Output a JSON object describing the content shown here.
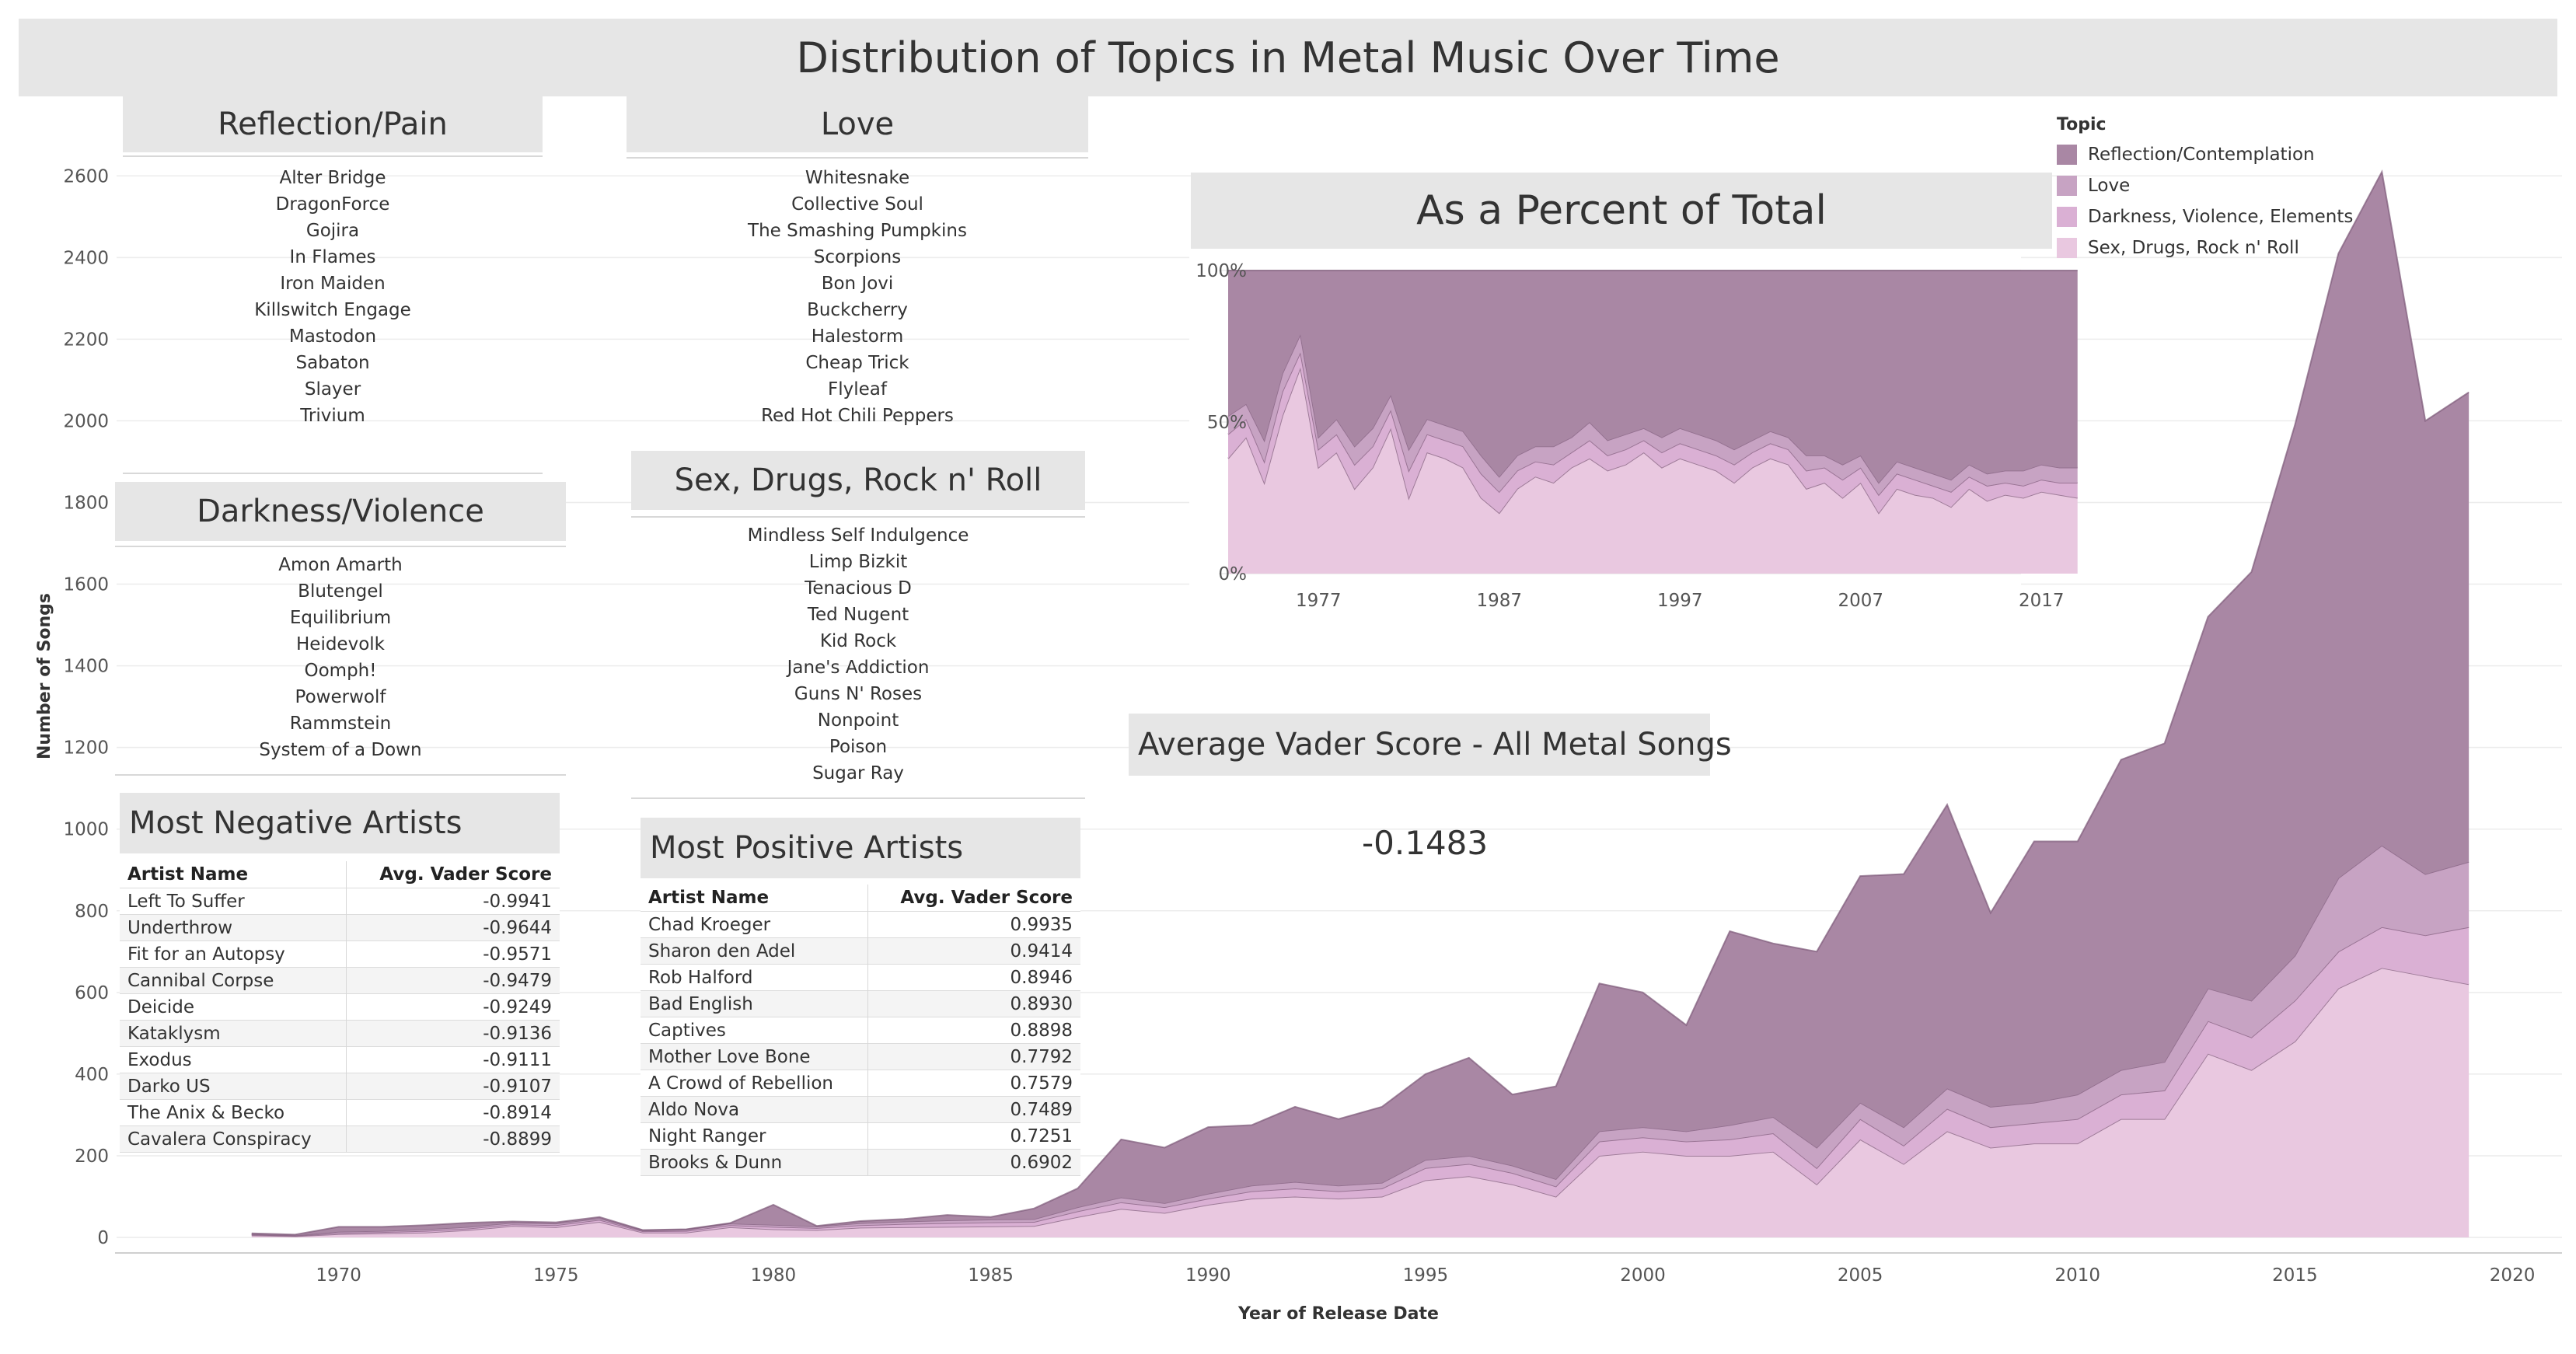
{
  "dashboard": {
    "title": "Distribution of Topics in Metal Music Over Time"
  },
  "colors": {
    "reflection": "#a987a4",
    "love": "#c7a3c3",
    "darkness": "#dab0d4",
    "sex": "#e9c8e0",
    "line": "#7d5a79",
    "header_bg": "#e6e6e6"
  },
  "lists": {
    "reflection_pain": {
      "title": "Reflection/Pain",
      "items": [
        "Alter Bridge",
        "DragonForce",
        "Gojira",
        "In Flames",
        "Iron Maiden",
        "Killswitch Engage",
        "Mastodon",
        "Sabaton",
        "Slayer",
        "Trivium"
      ]
    },
    "love": {
      "title": "Love",
      "items": [
        "Whitesnake",
        "Collective Soul",
        "The Smashing Pumpkins",
        "Scorpions",
        "Bon Jovi",
        "Buckcherry",
        "Halestorm",
        "Cheap Trick",
        "Flyleaf",
        "Red Hot Chili Peppers"
      ]
    },
    "darkness_violence": {
      "title": "Darkness/Violence",
      "items": [
        "Amon Amarth",
        "Blutengel",
        "Equilibrium",
        "Heidevolk",
        "Oomph!",
        "Powerwolf",
        "Rammstein",
        "System of a Down"
      ]
    },
    "sex_drugs": {
      "title": "Sex, Drugs, Rock n' Roll",
      "items": [
        "Mindless Self Indulgence",
        "Limp Bizkit",
        "Tenacious D",
        "Ted Nugent",
        "Kid Rock",
        "Jane's Addiction",
        "Guns N' Roses",
        "Nonpoint",
        "Poison",
        "Sugar Ray"
      ]
    }
  },
  "negative": {
    "title": "Most Negative Artists",
    "col_name": "Artist Name",
    "col_score": "Avg. Vader Score",
    "rows": [
      [
        "Left To Suffer",
        "-0.9941"
      ],
      [
        "Underthrow",
        "-0.9644"
      ],
      [
        "Fit for an Autopsy",
        "-0.9571"
      ],
      [
        "Cannibal Corpse",
        "-0.9479"
      ],
      [
        "Deicide",
        "-0.9249"
      ],
      [
        "Kataklysm",
        "-0.9136"
      ],
      [
        "Exodus",
        "-0.9111"
      ],
      [
        "Darko US",
        "-0.9107"
      ],
      [
        "The Anix & Becko",
        "-0.8914"
      ],
      [
        "Cavalera Conspiracy",
        "-0.8899"
      ]
    ]
  },
  "positive": {
    "title": "Most Positive Artists",
    "col_name": "Artist Name",
    "col_score": "Avg. Vader Score",
    "rows": [
      [
        "Chad Kroeger",
        "0.9935"
      ],
      [
        "Sharon den Adel",
        "0.9414"
      ],
      [
        "Rob Halford",
        "0.8946"
      ],
      [
        "Bad English",
        "0.8930"
      ],
      [
        "Captives",
        "0.8898"
      ],
      [
        "Mother Love Bone",
        "0.7792"
      ],
      [
        "A Crowd of Rebellion",
        "0.7579"
      ],
      [
        "Aldo Nova",
        "0.7489"
      ],
      [
        "Night Ranger",
        "0.7251"
      ],
      [
        "Brooks & Dunn",
        "0.6902"
      ]
    ]
  },
  "vader": {
    "title": "Average Vader Score - All Metal Songs",
    "value": "-0.1483"
  },
  "legend": {
    "title": "Topic",
    "items": [
      "Reflection/Contemplation",
      "Love",
      "Darkness, Violence, Elements",
      "Sex, Drugs, Rock n' Roll"
    ]
  },
  "chart_data": [
    {
      "type": "area",
      "stacked": true,
      "title": "",
      "xlabel": "Year of Release Date",
      "ylabel": "Number of Songs",
      "xlim": [
        1965,
        2021
      ],
      "ylim": [
        0,
        2650
      ],
      "x_ticks": [
        1970,
        1975,
        1980,
        1985,
        1990,
        1995,
        2000,
        2005,
        2010,
        2015,
        2020
      ],
      "y_ticks": [
        0,
        200,
        400,
        600,
        800,
        1000,
        1200,
        1400,
        1600,
        1800,
        2000,
        2200,
        2400,
        2600
      ],
      "grid": true,
      "legend": "top-right",
      "x": [
        1968,
        1969,
        1970,
        1971,
        1972,
        1973,
        1974,
        1975,
        1976,
        1977,
        1978,
        1979,
        1980,
        1981,
        1982,
        1983,
        1984,
        1985,
        1986,
        1987,
        1988,
        1989,
        1990,
        1991,
        1992,
        1993,
        1994,
        1995,
        1996,
        1997,
        1998,
        1999,
        2000,
        2001,
        2002,
        2003,
        2004,
        2005,
        2006,
        2007,
        2008,
        2009,
        2010,
        2011,
        2012,
        2013,
        2014,
        2015,
        2016,
        2017,
        2018,
        2019
      ],
      "series": [
        {
          "name": "Sex, Drugs, Rock n' Roll",
          "values": [
            5,
            3,
            8,
            10,
            12,
            18,
            28,
            25,
            38,
            12,
            12,
            25,
            20,
            18,
            24,
            25,
            26,
            27,
            28,
            50,
            70,
            60,
            80,
            95,
            100,
            95,
            100,
            140,
            150,
            130,
            100,
            200,
            210,
            200,
            200,
            210,
            130,
            240,
            180,
            260,
            220,
            230,
            230,
            290,
            290,
            450,
            410,
            480,
            610,
            660,
            640,
            620
          ]
        },
        {
          "name": "Darkness, Violence, Elements",
          "values": [
            2,
            1,
            3,
            3,
            4,
            4,
            4,
            5,
            5,
            3,
            4,
            5,
            6,
            5,
            6,
            8,
            9,
            10,
            10,
            14,
            16,
            14,
            15,
            18,
            20,
            18,
            20,
            30,
            30,
            28,
            25,
            35,
            35,
            35,
            40,
            45,
            40,
            50,
            45,
            55,
            50,
            50,
            60,
            60,
            70,
            80,
            80,
            100,
            90,
            100,
            100,
            140
          ]
        },
        {
          "name": "Love",
          "values": [
            1,
            1,
            3,
            3,
            4,
            4,
            4,
            4,
            4,
            2,
            3,
            4,
            5,
            4,
            5,
            6,
            7,
            7,
            7,
            10,
            12,
            10,
            12,
            14,
            16,
            14,
            14,
            20,
            20,
            18,
            18,
            25,
            25,
            25,
            35,
            40,
            50,
            40,
            45,
            50,
            50,
            50,
            60,
            60,
            70,
            80,
            90,
            110,
            180,
            200,
            150,
            160
          ]
        },
        {
          "name": "Reflection/Contemplation",
          "values": [
            2,
            2,
            12,
            10,
            10,
            10,
            3,
            3,
            3,
            1,
            1,
            1,
            49,
            1,
            5,
            6,
            13,
            6,
            26,
            46,
            142,
            136,
            163,
            148,
            184,
            163,
            186,
            210,
            240,
            174,
            227,
            362,
            330,
            260,
            475,
            425,
            480,
            555,
            620,
            695,
            475,
            640,
            620,
            760,
            780,
            910,
            1050,
            1300,
            1530,
            1650,
            1110,
            1150
          ]
        }
      ]
    },
    {
      "type": "area",
      "stacked": true,
      "percent": true,
      "title": "As a Percent of Total",
      "xlim": [
        1972,
        2020
      ],
      "ylim": [
        0,
        100
      ],
      "x_ticks": [
        1977,
        1987,
        1997,
        2007,
        2017
      ],
      "y_ticks": [
        0,
        50,
        100
      ],
      "x": [
        1972,
        1973,
        1974,
        1975,
        1976,
        1977,
        1978,
        1979,
        1980,
        1981,
        1982,
        1983,
        1984,
        1985,
        1986,
        1987,
        1988,
        1989,
        1990,
        1991,
        1992,
        1993,
        1994,
        1995,
        1996,
        1997,
        1998,
        1999,
        2000,
        2001,
        2002,
        2003,
        2004,
        2005,
        2006,
        2007,
        2008,
        2009,
        2010,
        2011,
        2012,
        2013,
        2014,
        2015,
        2016,
        2017,
        2018,
        2019
      ],
      "series": [
        {
          "name": "Sex, Drugs, Rock n' Roll",
          "values": [
            38,
            45,
            30,
            52,
            68,
            35,
            40,
            28,
            35,
            48,
            25,
            40,
            38,
            35,
            25,
            20,
            28,
            32,
            30,
            35,
            38,
            34,
            36,
            40,
            35,
            38,
            36,
            34,
            30,
            35,
            38,
            36,
            28,
            30,
            25,
            30,
            20,
            28,
            26,
            25,
            22,
            28,
            24,
            26,
            25,
            27,
            26,
            25
          ]
        },
        {
          "name": "Darkness, Violence, Elements",
          "values": [
            8,
            6,
            7,
            8,
            5,
            6,
            6,
            8,
            7,
            6,
            9,
            6,
            6,
            7,
            8,
            7,
            6,
            5,
            6,
            5,
            6,
            5,
            5,
            4,
            5,
            5,
            5,
            5,
            6,
            5,
            5,
            5,
            6,
            5,
            6,
            5,
            6,
            5,
            5,
            4,
            5,
            4,
            5,
            4,
            4,
            4,
            4,
            5
          ]
        },
        {
          "name": "Love",
          "values": [
            6,
            5,
            7,
            6,
            6,
            4,
            5,
            6,
            6,
            5,
            7,
            5,
            5,
            5,
            6,
            5,
            5,
            5,
            6,
            5,
            6,
            5,
            5,
            4,
            5,
            5,
            5,
            5,
            5,
            4,
            4,
            4,
            5,
            4,
            5,
            4,
            4,
            4,
            4,
            4,
            4,
            4,
            4,
            4,
            5,
            5,
            5,
            5
          ]
        },
        {
          "name": "Reflection/Contemplation",
          "values": [
            48,
            44,
            56,
            34,
            21,
            55,
            49,
            58,
            52,
            41,
            59,
            49,
            51,
            53,
            61,
            68,
            61,
            58,
            58,
            55,
            50,
            56,
            54,
            52,
            55,
            52,
            54,
            56,
            59,
            56,
            53,
            55,
            61,
            61,
            64,
            61,
            70,
            63,
            65,
            67,
            69,
            64,
            67,
            66,
            66,
            64,
            65,
            65
          ]
        }
      ]
    }
  ]
}
